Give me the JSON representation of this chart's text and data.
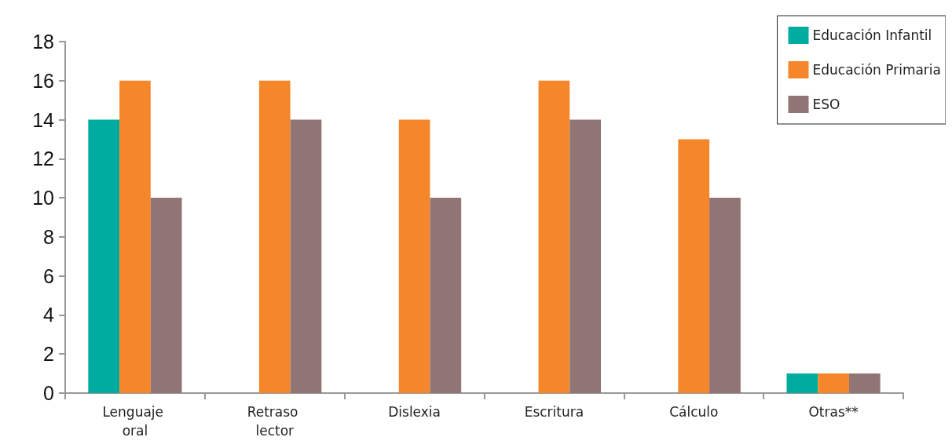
{
  "chart_data": {
    "type": "bar",
    "categories": [
      "Lenguaje oral",
      "Retraso lector",
      "Dislexia",
      "Escritura",
      "Cálculo",
      "Otras**"
    ],
    "series": [
      {
        "name": "Educación Infantil",
        "color": "#00aba0",
        "values": [
          14,
          null,
          null,
          null,
          null,
          1
        ]
      },
      {
        "name": "Educación Primaria",
        "color": "#f5862a",
        "values": [
          16,
          16,
          14,
          16,
          13,
          1
        ]
      },
      {
        "name": "ESO",
        "color": "#917575",
        "values": [
          10,
          14,
          10,
          14,
          10,
          1
        ]
      }
    ],
    "ylim": [
      0,
      18
    ],
    "yticks": [
      0,
      2,
      4,
      6,
      8,
      10,
      12,
      14,
      16,
      18
    ],
    "grid": false,
    "legend": "top right"
  }
}
